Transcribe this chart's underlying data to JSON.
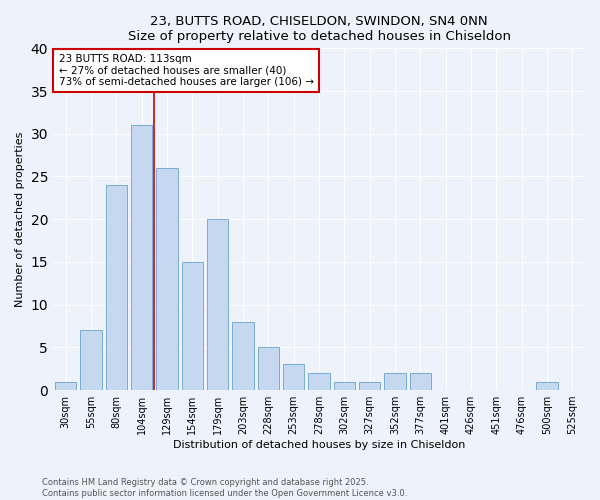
{
  "title1": "23, BUTTS ROAD, CHISELDON, SWINDON, SN4 0NN",
  "title2": "Size of property relative to detached houses in Chiseldon",
  "xlabel": "Distribution of detached houses by size in Chiseldon",
  "ylabel": "Number of detached properties",
  "categories": [
    "30sqm",
    "55sqm",
    "80sqm",
    "104sqm",
    "129sqm",
    "154sqm",
    "179sqm",
    "203sqm",
    "228sqm",
    "253sqm",
    "278sqm",
    "302sqm",
    "327sqm",
    "352sqm",
    "377sqm",
    "401sqm",
    "426sqm",
    "451sqm",
    "476sqm",
    "500sqm",
    "525sqm"
  ],
  "values": [
    1,
    7,
    24,
    31,
    26,
    15,
    20,
    8,
    5,
    3,
    2,
    1,
    1,
    2,
    2,
    0,
    0,
    0,
    0,
    1,
    0
  ],
  "bar_color": "#c5d8f0",
  "bar_edge_color": "#7aadd4",
  "vline_x_pos": 3.5,
  "vline_color": "#cc0000",
  "annotation_title": "23 BUTTS ROAD: 113sqm",
  "annotation_line2": "← 27% of detached houses are smaller (40)",
  "annotation_line3": "73% of semi-detached houses are larger (106) →",
  "annotation_box_color": "#ffffff",
  "annotation_box_edge": "#cc0000",
  "ylim": [
    0,
    40
  ],
  "yticks": [
    0,
    5,
    10,
    15,
    20,
    25,
    30,
    35,
    40
  ],
  "footer1": "Contains HM Land Registry data © Crown copyright and database right 2025.",
  "footer2": "Contains public sector information licensed under the Open Government Licence v3.0.",
  "bg_color": "#eef2fb",
  "title_fontsize": 9.5,
  "axis_label_fontsize": 8,
  "tick_fontsize": 7,
  "footer_fontsize": 6,
  "annotation_fontsize": 7.5
}
